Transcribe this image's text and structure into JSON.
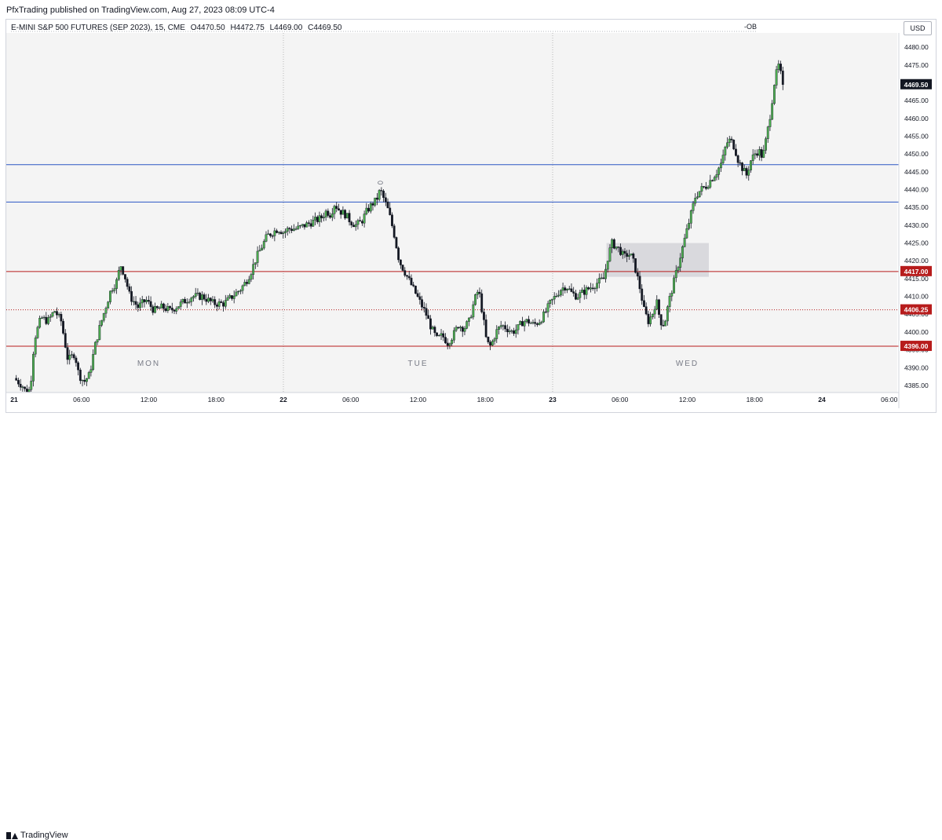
{
  "header": {
    "publisher": "PfxTrading published on TradingView.com, Aug 27, 2023 08:09 UTC-4"
  },
  "legend": {
    "symbol": "E-MINI S&P 500 FUTURES (SEP 2023), 15, CME",
    "open": "O4470.50",
    "high": "H4472.75",
    "low": "L4469.00",
    "close": "C4469.50",
    "ob_label": "-OB"
  },
  "currency": "USD",
  "footer": {
    "brand": "TradingView"
  },
  "colors": {
    "up": "#4caf50",
    "down": "#131722",
    "plot_bg": "#f4f4f4",
    "blue_line": "#2b57c4",
    "red_line": "#b71c1c",
    "zone": "#d3d3d8"
  },
  "chart_data": {
    "type": "candlestick",
    "title": "",
    "ylim": [
      4383,
      4484
    ],
    "price_ticks": [
      "4480.00",
      "4475.00",
      "4470.00",
      "4465.00",
      "4460.00",
      "4455.00",
      "4450.00",
      "4445.00",
      "4440.00",
      "4435.00",
      "4430.00",
      "4425.00",
      "4420.00",
      "4415.00",
      "4410.00",
      "4405.00",
      "4400.00",
      "4395.00",
      "4390.00",
      "4385.00"
    ],
    "time_ticks": [
      "21",
      "06:00",
      "12:00",
      "18:00",
      "22",
      "06:00",
      "12:00",
      "18:00",
      "23",
      "06:00",
      "12:00",
      "18:00",
      "24",
      "06:00"
    ],
    "day_labels": [
      {
        "text": "MON",
        "x": 0.5
      },
      {
        "text": "TUE",
        "x": 1.5
      },
      {
        "text": "WED",
        "x": 2.5
      }
    ],
    "horizontal_lines": [
      {
        "price": 4447.0,
        "color": "blue",
        "style": "solid"
      },
      {
        "price": 4436.5,
        "color": "blue",
        "style": "solid"
      },
      {
        "price": 4417.0,
        "color": "red",
        "style": "solid",
        "label": "4417.00"
      },
      {
        "price": 4406.25,
        "color": "red",
        "style": "dotted",
        "label": "4406.25"
      },
      {
        "price": 4396.0,
        "color": "red",
        "style": "solid",
        "label": "4396.00"
      }
    ],
    "current_price": {
      "price": 4469.5,
      "label": "4469.50"
    },
    "ob_zone": {
      "x_start": 2.2,
      "x_end": 2.58,
      "price_top": 4425.0,
      "price_bottom": 4415.5
    },
    "marker": {
      "x": 1.36,
      "price": 4441.5
    },
    "price_path": [
      [
        0.0,
        4387
      ],
      [
        0.03,
        4385
      ],
      [
        0.045,
        4383
      ],
      [
        0.06,
        4384
      ],
      [
        0.075,
        4398
      ],
      [
        0.1,
        4404
      ],
      [
        0.125,
        4403
      ],
      [
        0.15,
        4406
      ],
      [
        0.175,
        4403
      ],
      [
        0.2,
        4392
      ],
      [
        0.225,
        4394
      ],
      [
        0.24,
        4388
      ],
      [
        0.26,
        4386
      ],
      [
        0.28,
        4388
      ],
      [
        0.3,
        4396
      ],
      [
        0.32,
        4402
      ],
      [
        0.34,
        4407
      ],
      [
        0.36,
        4412
      ],
      [
        0.38,
        4414
      ],
      [
        0.395,
        4419
      ],
      [
        0.41,
        4416
      ],
      [
        0.43,
        4410
      ],
      [
        0.46,
        4407
      ],
      [
        0.49,
        4409
      ],
      [
        0.52,
        4406
      ],
      [
        0.55,
        4407
      ],
      [
        0.58,
        4406
      ],
      [
        0.62,
        4408
      ],
      [
        0.66,
        4410
      ],
      [
        0.7,
        4410
      ],
      [
        0.74,
        4408
      ],
      [
        0.78,
        4408
      ],
      [
        0.81,
        4410
      ],
      [
        0.84,
        4412
      ],
      [
        0.86,
        4414
      ],
      [
        0.88,
        4417
      ],
      [
        0.9,
        4421
      ],
      [
        0.92,
        4424
      ],
      [
        0.94,
        4427
      ],
      [
        0.96,
        4428
      ],
      [
        0.98,
        4429
      ],
      [
        1.0,
        4428
      ],
      [
        1.02,
        4429
      ],
      [
        1.05,
        4429
      ],
      [
        1.08,
        4430
      ],
      [
        1.11,
        4431
      ],
      [
        1.14,
        4432
      ],
      [
        1.16,
        4434
      ],
      [
        1.175,
        4433
      ],
      [
        1.19,
        4436
      ],
      [
        1.21,
        4434
      ],
      [
        1.23,
        4433
      ],
      [
        1.25,
        4431
      ],
      [
        1.27,
        4430
      ],
      [
        1.29,
        4431
      ],
      [
        1.31,
        4434
      ],
      [
        1.33,
        4436
      ],
      [
        1.345,
        4437
      ],
      [
        1.36,
        4440
      ],
      [
        1.375,
        4437
      ],
      [
        1.39,
        4434
      ],
      [
        1.41,
        4428
      ],
      [
        1.43,
        4420
      ],
      [
        1.45,
        4417
      ],
      [
        1.47,
        4414
      ],
      [
        1.49,
        4411
      ],
      [
        1.51,
        4408
      ],
      [
        1.53,
        4405
      ],
      [
        1.55,
        4401
      ],
      [
        1.57,
        4398
      ],
      [
        1.59,
        4399
      ],
      [
        1.61,
        4397
      ],
      [
        1.63,
        4399
      ],
      [
        1.65,
        4402
      ],
      [
        1.67,
        4401
      ],
      [
        1.69,
        4403
      ],
      [
        1.71,
        4409
      ],
      [
        1.725,
        4412
      ],
      [
        1.74,
        4405
      ],
      [
        1.755,
        4397
      ],
      [
        1.77,
        4396
      ],
      [
        1.79,
        4400
      ],
      [
        1.81,
        4402
      ],
      [
        1.83,
        4401
      ],
      [
        1.85,
        4400
      ],
      [
        1.87,
        4401
      ],
      [
        1.89,
        4403
      ],
      [
        1.91,
        4403
      ],
      [
        1.93,
        4402
      ],
      [
        1.95,
        4403
      ],
      [
        1.97,
        4405
      ],
      [
        1.99,
        4408
      ],
      [
        2.01,
        4410
      ],
      [
        2.03,
        4412
      ],
      [
        2.05,
        4413
      ],
      [
        2.07,
        4411
      ],
      [
        2.09,
        4410
      ],
      [
        2.11,
        4411
      ],
      [
        2.13,
        4412
      ],
      [
        2.15,
        4413
      ],
      [
        2.17,
        4414
      ],
      [
        2.19,
        4415
      ],
      [
        2.205,
        4421
      ],
      [
        2.22,
        4425
      ],
      [
        2.235,
        4424
      ],
      [
        2.25,
        4423
      ],
      [
        2.265,
        4421
      ],
      [
        2.28,
        4422
      ],
      [
        2.295,
        4421
      ],
      [
        2.31,
        4417
      ],
      [
        2.325,
        4412
      ],
      [
        2.34,
        4406
      ],
      [
        2.355,
        4403
      ],
      [
        2.37,
        4405
      ],
      [
        2.385,
        4409
      ],
      [
        2.4,
        4403
      ],
      [
        2.415,
        4402
      ],
      [
        2.43,
        4408
      ],
      [
        2.45,
        4414
      ],
      [
        2.47,
        4420
      ],
      [
        2.49,
        4426
      ],
      [
        2.51,
        4432
      ],
      [
        2.53,
        4438
      ],
      [
        2.55,
        4440
      ],
      [
        2.57,
        4441
      ],
      [
        2.59,
        4443
      ],
      [
        2.61,
        4445
      ],
      [
        2.63,
        4448
      ],
      [
        2.645,
        4453
      ],
      [
        2.66,
        4454
      ],
      [
        2.675,
        4452
      ],
      [
        2.69,
        4448
      ],
      [
        2.705,
        4446
      ],
      [
        2.72,
        4444
      ],
      [
        2.735,
        4448
      ],
      [
        2.75,
        4450
      ],
      [
        2.765,
        4451
      ],
      [
        2.78,
        4449
      ],
      [
        2.795,
        4455
      ],
      [
        2.81,
        4462
      ],
      [
        2.825,
        4471
      ],
      [
        2.84,
        4475
      ],
      [
        2.855,
        4469.5
      ]
    ]
  }
}
